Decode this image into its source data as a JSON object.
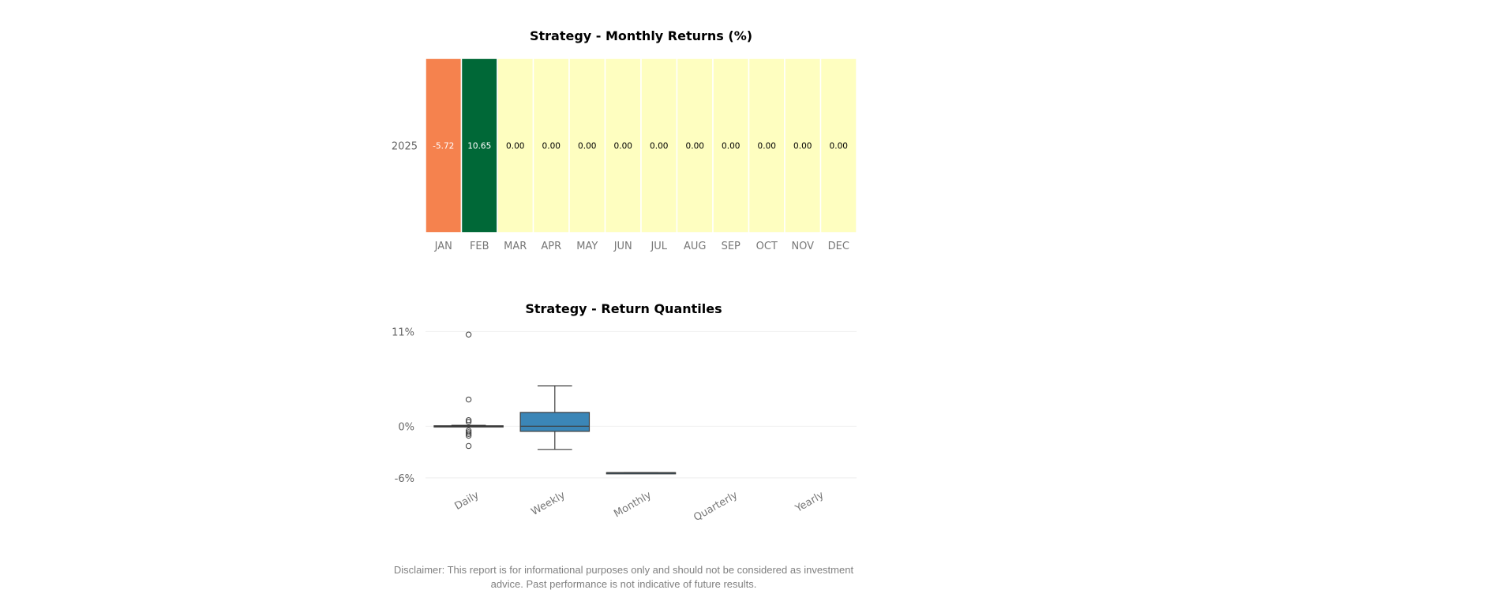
{
  "chart_data": [
    {
      "type": "heatmap",
      "title": "Strategy - Monthly Returns (%)",
      "rows": [
        "2025"
      ],
      "columns": [
        "JAN",
        "FEB",
        "MAR",
        "APR",
        "MAY",
        "JUN",
        "JUL",
        "AUG",
        "SEP",
        "OCT",
        "NOV",
        "DEC"
      ],
      "values": [
        [
          -5.72,
          10.65,
          0.0,
          0.0,
          0.0,
          0.0,
          0.0,
          0.0,
          0.0,
          0.0,
          0.0,
          0.0
        ]
      ],
      "value_labels": [
        [
          "-5.72",
          "10.65",
          "0.00",
          "0.00",
          "0.00",
          "0.00",
          "0.00",
          "0.00",
          "0.00",
          "0.00",
          "0.00",
          "0.00"
        ]
      ],
      "colormap": "RdYlGn",
      "cell_colors": [
        [
          "#f5824e",
          "#006837",
          "#fefec0",
          "#fefec0",
          "#fefec0",
          "#fefec0",
          "#fefec0",
          "#fefec0",
          "#fefec0",
          "#fefec0",
          "#fefec0",
          "#fefec0"
        ]
      ],
      "label_colors": [
        [
          "#ffffff",
          "#ffffff",
          "#000000",
          "#000000",
          "#000000",
          "#000000",
          "#000000",
          "#000000",
          "#000000",
          "#000000",
          "#000000",
          "#000000"
        ]
      ]
    },
    {
      "type": "box",
      "title": "Strategy - Return Quantiles",
      "categories": [
        "Daily",
        "Weekly",
        "Monthly",
        "Quarterly",
        "Yearly"
      ],
      "yticks": [
        -6,
        0,
        11
      ],
      "ytick_labels": [
        "-6%",
        "0%",
        "11%"
      ],
      "ylim": [
        -6.2,
        11.4
      ],
      "box_color": "#3b86b7",
      "grid": true,
      "boxes": [
        {
          "category": "Daily",
          "whisker_low": -0.1,
          "q1": -0.1,
          "median": 0.0,
          "q3": 0.05,
          "whisker_high": 0.1,
          "outliers": [
            10.65,
            3.1,
            0.7,
            0.5,
            -0.5,
            -0.7,
            -0.9,
            -1.1,
            -2.3
          ]
        },
        {
          "category": "Weekly",
          "whisker_low": -2.7,
          "q1": -0.6,
          "median": 0.0,
          "q3": 1.6,
          "whisker_high": 4.7,
          "outliers": []
        },
        {
          "category": "Monthly",
          "whisker_low": -5.4,
          "q1": -5.4,
          "median": -5.4,
          "q3": -5.4,
          "whisker_high": -5.4,
          "outliers": []
        }
      ]
    }
  ],
  "disclaimer": "Disclaimer: This report is for informational purposes only and should not be considered as investment advice. Past performance is not indicative of future results."
}
